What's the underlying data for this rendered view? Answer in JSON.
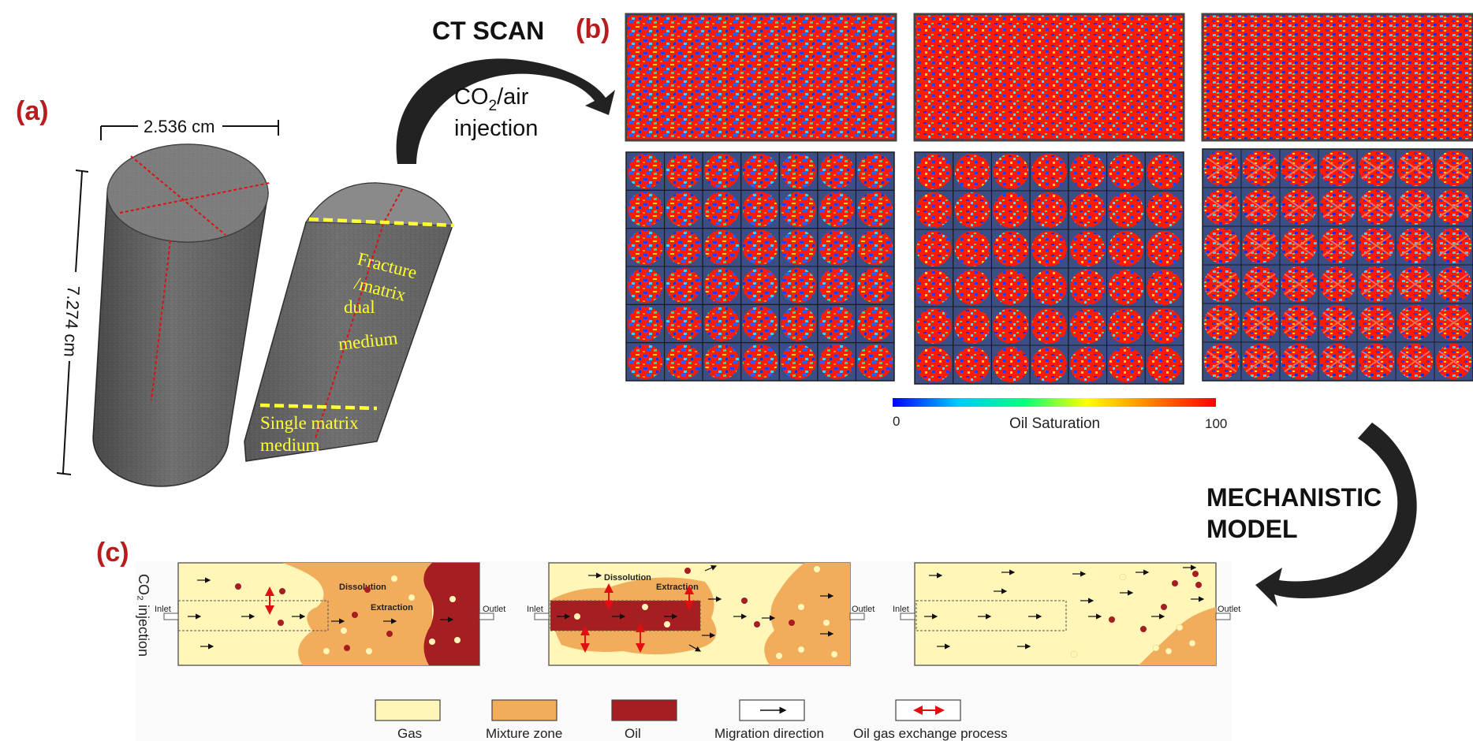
{
  "panels": {
    "a": "(a)",
    "b": "(b)",
    "c": "(c)"
  },
  "core": {
    "diameter": "2.536 cm",
    "length": "7.274 cm",
    "dual_label_lines": [
      "Fracture",
      "/matrix",
      "dual",
      "medium"
    ],
    "single_label_lines": [
      "Single matrix",
      "medium"
    ]
  },
  "ct": {
    "title": "CT SCAN",
    "injection_gas": "CO",
    "injection_sub": "2",
    "injection_rest": "/air",
    "injection_word": "injection"
  },
  "colorbar": {
    "min": "0",
    "max": "100",
    "label": "Oil Saturation",
    "stops": [
      "#0000ff",
      "#00c8ff",
      "#00ff80",
      "#ffff00",
      "#ff8000",
      "#ff0000"
    ]
  },
  "mechanistic": {
    "line1": "MECHANISTIC",
    "line2": "MODEL"
  },
  "schematic": {
    "side_label": "CO₂ injection",
    "inlet": "Inlet",
    "outlet": "Outlet",
    "dissolution": "Dissolution",
    "extraction": "Extraction"
  },
  "legend": [
    {
      "label": "Gas",
      "color": "#fff6b8"
    },
    {
      "label": "Mixture zone",
      "color": "#f2ad5c"
    },
    {
      "label": "Oil",
      "color": "#a61e22"
    },
    {
      "label": "Migration direction",
      "color": "#ffffff"
    },
    {
      "label": "Oil gas exchange process",
      "color": "#ffffff"
    }
  ],
  "colors": {
    "panel_label": "#b81c1c",
    "core_gray": "#6e6e6e",
    "yellow": "#ffff33",
    "ct_red": "#ff1a00",
    "ct_navy": "#3c4e86"
  }
}
